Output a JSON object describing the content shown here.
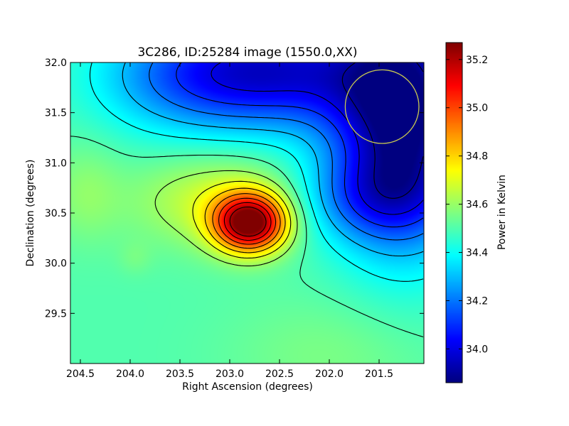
{
  "chart_data": {
    "type": "heatmap",
    "title": "3C286, ID:25284 image (1550.0,XX)",
    "xlabel": "Right Ascension (degrees)",
    "ylabel": "Declination (degrees)",
    "xlim": [
      204.6,
      201.05
    ],
    "ylim": [
      29.0,
      32.0
    ],
    "x_ticks": [
      "204.5",
      "204.0",
      "203.5",
      "203.0",
      "202.5",
      "202.0",
      "201.5"
    ],
    "x_tick_values": [
      204.5,
      204.0,
      203.5,
      203.0,
      202.5,
      202.0,
      201.5
    ],
    "y_ticks": [
      "29.5",
      "30.0",
      "30.5",
      "31.0",
      "31.5",
      "32.0"
    ],
    "y_tick_values": [
      29.5,
      30.0,
      30.5,
      31.0,
      31.5,
      32.0
    ],
    "colorbar": {
      "label": "Power in Kelvin",
      "range": [
        33.86,
        35.27
      ],
      "ticks": [
        "34.0",
        "34.2",
        "34.4",
        "34.6",
        "34.8",
        "35.0",
        "35.2"
      ],
      "tick_values": [
        34.0,
        34.2,
        34.4,
        34.6,
        34.8,
        35.0,
        35.2
      ],
      "colormap": "jet"
    },
    "background_level": 34.5,
    "peak": {
      "ra": 202.8,
      "dec": 30.4,
      "value": 35.27
    },
    "blobs": [
      {
        "ra": 202.8,
        "dec": 30.4,
        "amp": 0.77,
        "sig_ra": 0.25,
        "sig_dec": 0.2
      },
      {
        "ra": 203.1,
        "dec": 30.62,
        "amp": 0.18,
        "sig_ra": 0.6,
        "sig_dec": 0.32
      },
      {
        "ra": 201.25,
        "dec": 31.45,
        "amp": -0.65,
        "sig_ra": 0.5,
        "sig_dec": 0.85
      },
      {
        "ra": 202.6,
        "dec": 31.9,
        "amp": -0.5,
        "sig_ra": 0.8,
        "sig_dec": 0.4
      },
      {
        "ra": 201.6,
        "dec": 30.65,
        "amp": -0.22,
        "sig_ra": 0.5,
        "sig_dec": 0.3
      },
      {
        "ra": 203.6,
        "dec": 31.85,
        "amp": -0.15,
        "sig_ra": 0.6,
        "sig_dec": 0.4
      },
      {
        "ra": 204.45,
        "dec": 30.7,
        "amp": 0.08,
        "sig_ra": 0.25,
        "sig_dec": 0.35
      },
      {
        "ra": 203.95,
        "dec": 30.05,
        "amp": 0.04,
        "sig_ra": 0.12,
        "sig_dec": 0.12
      },
      {
        "ra": 202.0,
        "dec": 29.1,
        "amp": 0.06,
        "sig_ra": 0.7,
        "sig_dec": 0.4
      }
    ],
    "contour_levels": [
      33.9,
      34.0,
      34.1,
      34.2,
      34.3,
      34.4,
      34.5,
      34.6,
      34.7,
      34.8,
      34.9,
      35.0,
      35.1,
      35.2
    ],
    "beam_circle": {
      "ra": 201.47,
      "dec": 31.56,
      "radius_deg": 0.37,
      "color": "#c8c850"
    },
    "contour_color": "#000000"
  }
}
